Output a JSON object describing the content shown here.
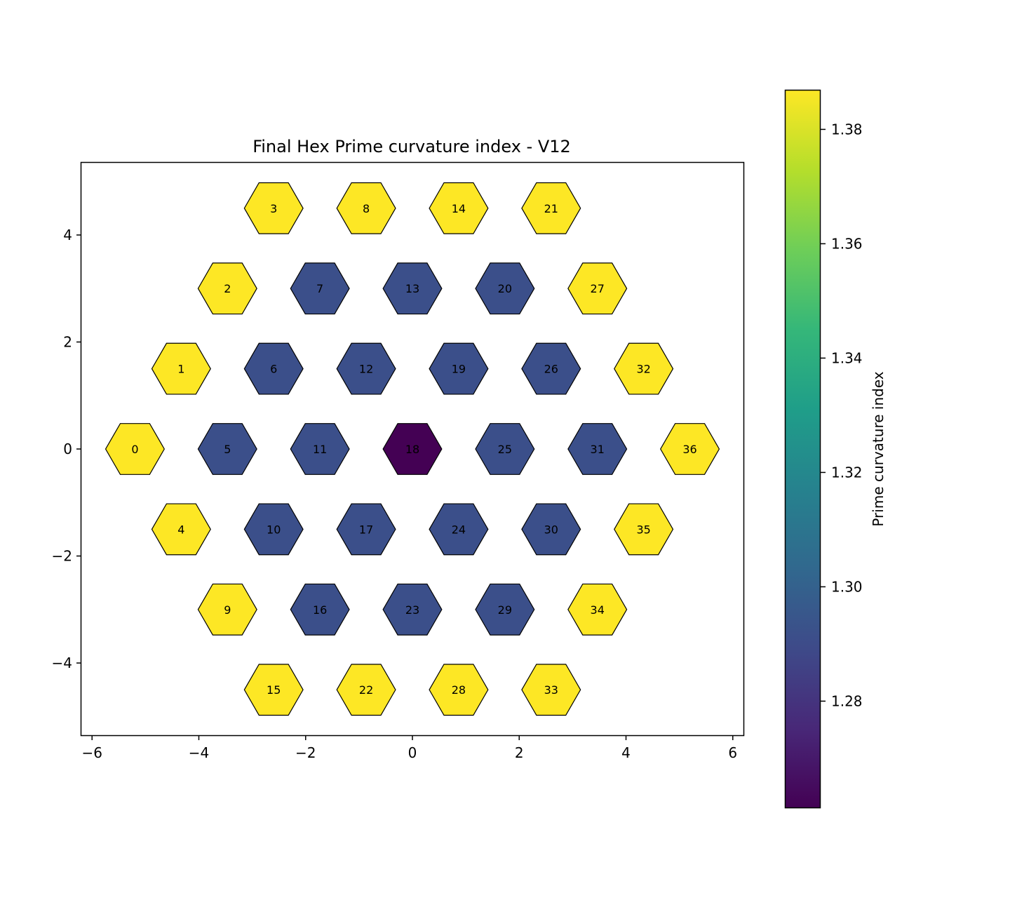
{
  "chart_data": {
    "type": "hexagon-map",
    "title": "Final Hex Prime curvature index - V12",
    "xlim": [
      -6.2,
      6.2
    ],
    "ylim": [
      -5.35,
      5.35
    ],
    "x_ticks": [
      -6,
      -4,
      -2,
      0,
      2,
      4,
      6
    ],
    "x_tick_labels": [
      "−6",
      "−4",
      "−2",
      "0",
      "2",
      "4",
      "6"
    ],
    "y_ticks": [
      -4,
      -2,
      0,
      2,
      4
    ],
    "y_tick_labels": [
      "−4",
      "−2",
      "0",
      "2",
      "4"
    ],
    "grid": false,
    "colormap": "viridis",
    "colorbar": {
      "label": "Prime curvature index",
      "range": [
        1.2614,
        1.3868
      ],
      "ticks": [
        1.28,
        1.3,
        1.32,
        1.34,
        1.36,
        1.38
      ],
      "tick_labels": [
        "1.28",
        "1.30",
        "1.32",
        "1.34",
        "1.36",
        "1.38"
      ],
      "colors": [
        "#440154",
        "#482878",
        "#3e4a89",
        "#31688e",
        "#26828e",
        "#1f9e89",
        "#35b779",
        "#6ece58",
        "#b5de2b",
        "#fde725"
      ]
    },
    "cells": [
      {
        "id": "0",
        "x": -5.196,
        "y": 0.0,
        "value": 1.3868,
        "color": "#fde725"
      },
      {
        "id": "1",
        "x": -4.33,
        "y": 1.5,
        "value": 1.3868,
        "color": "#fde725"
      },
      {
        "id": "2",
        "x": -3.464,
        "y": 3.0,
        "value": 1.3868,
        "color": "#fde725"
      },
      {
        "id": "3",
        "x": -2.598,
        "y": 4.5,
        "value": 1.3868,
        "color": "#fde725"
      },
      {
        "id": "4",
        "x": -4.33,
        "y": -1.5,
        "value": 1.3868,
        "color": "#fde725"
      },
      {
        "id": "5",
        "x": -3.464,
        "y": 0.0,
        "value": 1.29,
        "color": "#3b4f8a"
      },
      {
        "id": "6",
        "x": -2.598,
        "y": 1.5,
        "value": 1.29,
        "color": "#3b4f8a"
      },
      {
        "id": "7",
        "x": -1.732,
        "y": 3.0,
        "value": 1.29,
        "color": "#3b4f8a"
      },
      {
        "id": "8",
        "x": -0.866,
        "y": 4.5,
        "value": 1.3868,
        "color": "#fde725"
      },
      {
        "id": "9",
        "x": -3.464,
        "y": -3.0,
        "value": 1.3868,
        "color": "#fde725"
      },
      {
        "id": "10",
        "x": -2.598,
        "y": -1.5,
        "value": 1.29,
        "color": "#3b4f8a"
      },
      {
        "id": "11",
        "x": -1.732,
        "y": 0.0,
        "value": 1.29,
        "color": "#3b4f8a"
      },
      {
        "id": "12",
        "x": -0.866,
        "y": 1.5,
        "value": 1.29,
        "color": "#3b4f8a"
      },
      {
        "id": "13",
        "x": 0.0,
        "y": 3.0,
        "value": 1.29,
        "color": "#3b4f8a"
      },
      {
        "id": "14",
        "x": 0.866,
        "y": 4.5,
        "value": 1.3868,
        "color": "#fde725"
      },
      {
        "id": "15",
        "x": -2.598,
        "y": -4.5,
        "value": 1.3868,
        "color": "#fde725"
      },
      {
        "id": "16",
        "x": -1.732,
        "y": -3.0,
        "value": 1.29,
        "color": "#3b4f8a"
      },
      {
        "id": "17",
        "x": -0.866,
        "y": -1.5,
        "value": 1.29,
        "color": "#3b4f8a"
      },
      {
        "id": "18",
        "x": 0.0,
        "y": 0.0,
        "value": 1.2614,
        "color": "#440154"
      },
      {
        "id": "19",
        "x": 0.866,
        "y": 1.5,
        "value": 1.29,
        "color": "#3b4f8a"
      },
      {
        "id": "20",
        "x": 1.732,
        "y": 3.0,
        "value": 1.29,
        "color": "#3b4f8a"
      },
      {
        "id": "21",
        "x": 2.598,
        "y": 4.5,
        "value": 1.3868,
        "color": "#fde725"
      },
      {
        "id": "22",
        "x": -0.866,
        "y": -4.5,
        "value": 1.3868,
        "color": "#fde725"
      },
      {
        "id": "23",
        "x": 0.0,
        "y": -3.0,
        "value": 1.29,
        "color": "#3b4f8a"
      },
      {
        "id": "24",
        "x": 0.866,
        "y": -1.5,
        "value": 1.29,
        "color": "#3b4f8a"
      },
      {
        "id": "25",
        "x": 1.732,
        "y": 0.0,
        "value": 1.29,
        "color": "#3b4f8a"
      },
      {
        "id": "26",
        "x": 2.598,
        "y": 1.5,
        "value": 1.29,
        "color": "#3b4f8a"
      },
      {
        "id": "27",
        "x": 3.464,
        "y": 3.0,
        "value": 1.3868,
        "color": "#fde725"
      },
      {
        "id": "28",
        "x": 0.866,
        "y": -4.5,
        "value": 1.3868,
        "color": "#fde725"
      },
      {
        "id": "29",
        "x": 1.732,
        "y": -3.0,
        "value": 1.29,
        "color": "#3b4f8a"
      },
      {
        "id": "30",
        "x": 2.598,
        "y": -1.5,
        "value": 1.29,
        "color": "#3b4f8a"
      },
      {
        "id": "31",
        "x": 3.464,
        "y": 0.0,
        "value": 1.29,
        "color": "#3b4f8a"
      },
      {
        "id": "32",
        "x": 4.33,
        "y": 1.5,
        "value": 1.3868,
        "color": "#fde725"
      },
      {
        "id": "33",
        "x": 2.598,
        "y": -4.5,
        "value": 1.3868,
        "color": "#fde725"
      },
      {
        "id": "34",
        "x": 3.464,
        "y": -3.0,
        "value": 1.3868,
        "color": "#fde725"
      },
      {
        "id": "35",
        "x": 4.33,
        "y": -1.5,
        "value": 1.3868,
        "color": "#fde725"
      },
      {
        "id": "36",
        "x": 5.196,
        "y": 0.0,
        "value": 1.3868,
        "color": "#fde725"
      }
    ]
  }
}
